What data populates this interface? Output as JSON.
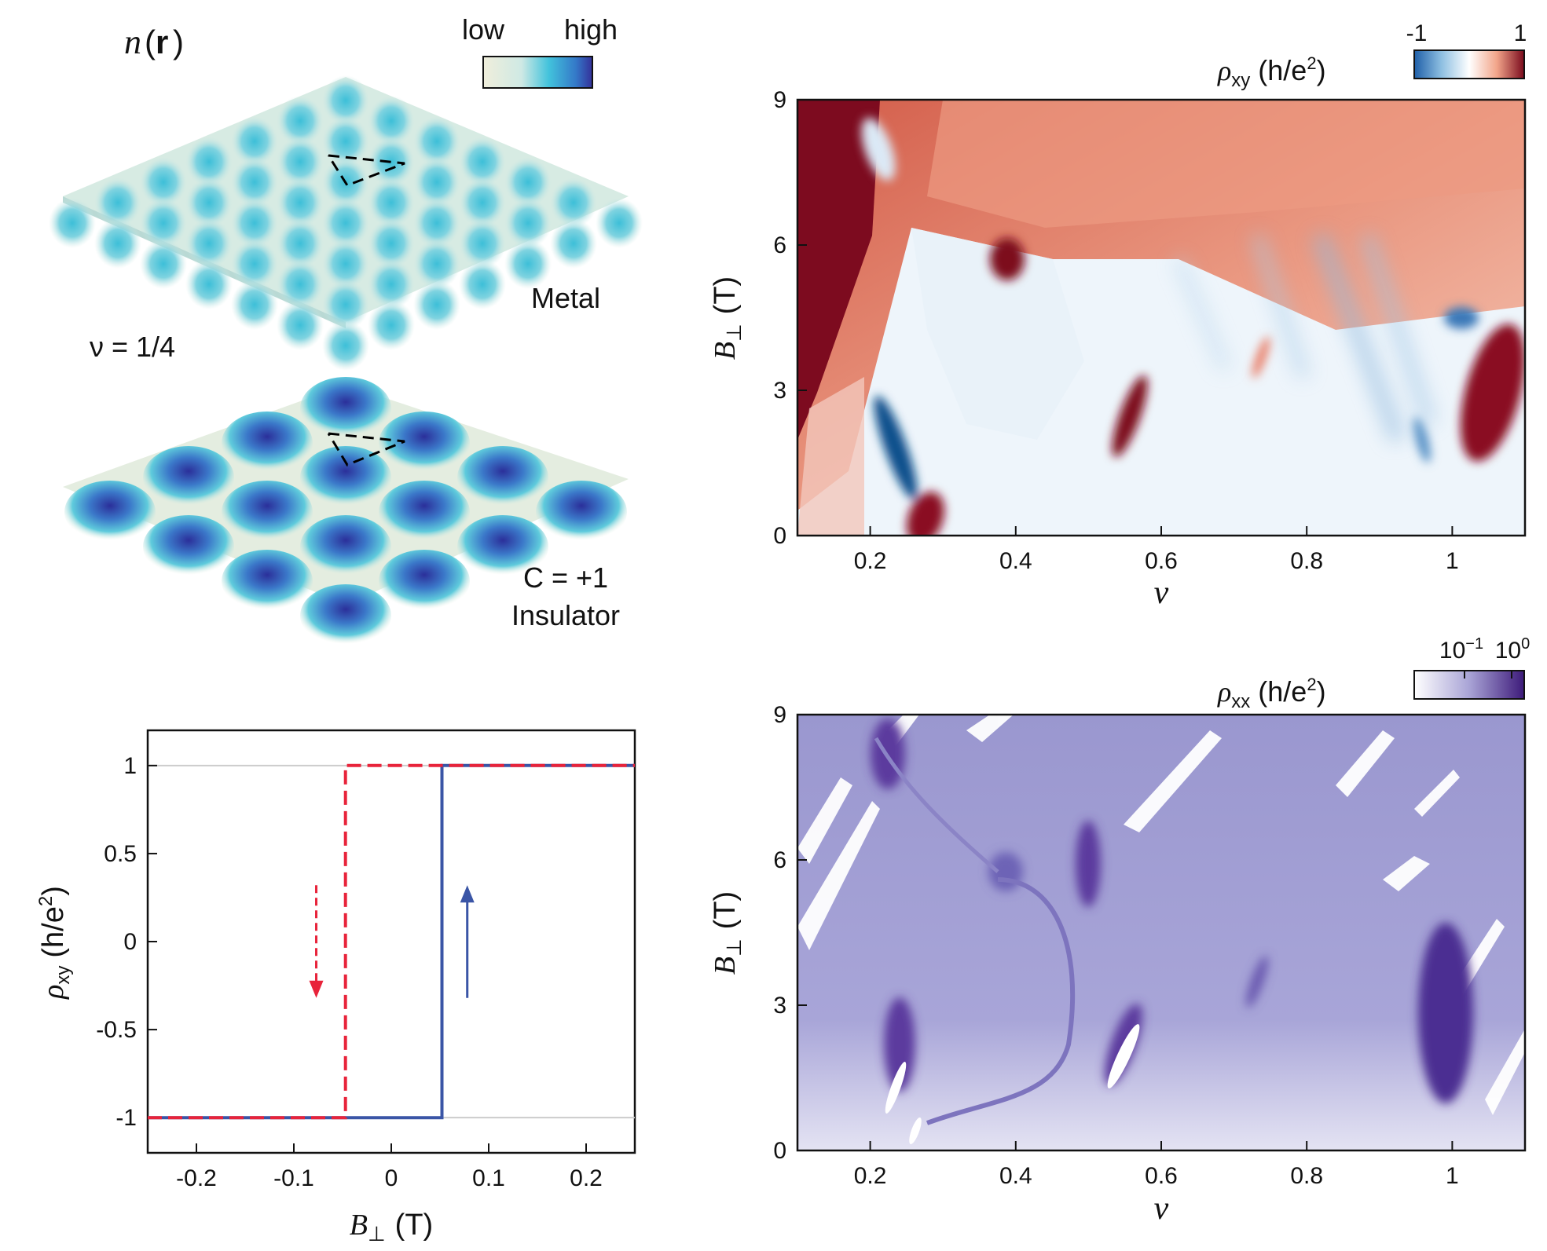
{
  "surface_panel": {
    "density_label": "n",
    "density_arg": "r",
    "colorbar": {
      "low": "low",
      "high": "high"
    },
    "metal_label": "Metal",
    "filling_label": "ν = 1/4",
    "insulator_chern": "C = +1",
    "insulator_label": "Insulator"
  },
  "chart_data": [
    {
      "id": "hysteresis",
      "type": "line",
      "xlabel_sym": "B",
      "xlabel_sub": "⊥",
      "xlabel_unit": "(T)",
      "ylabel_sym": "ρ",
      "ylabel_sub": "xy",
      "ylabel_unit": "(h/e",
      "ylabel_sup": "2",
      "ylabel_close": ")",
      "xlim": [
        -0.25,
        0.25
      ],
      "ylim": [
        -1.2,
        1.2
      ],
      "xticks": [
        -0.2,
        -0.1,
        0,
        0.1,
        0.2
      ],
      "xtick_labels": [
        "-0.2",
        "-0.1",
        "0",
        "0.1",
        "0.2"
      ],
      "yticks": [
        -1,
        -0.5,
        0,
        0.5,
        1
      ],
      "ytick_labels": [
        "-1",
        "-0.5",
        "0",
        "0.5",
        "1"
      ],
      "gridlines_y": [
        -1,
        1
      ],
      "series": [
        {
          "color": "#e8233a",
          "dash": true,
          "direction": "down",
          "x": [
            -0.25,
            -0.047,
            -0.047,
            0.25
          ],
          "y": [
            -1,
            -1,
            1,
            1
          ]
        },
        {
          "color": "#3a55a6",
          "dash": false,
          "direction": "up",
          "x": [
            -0.25,
            0.052,
            0.052,
            0.25
          ],
          "y": [
            -1,
            -1,
            1,
            1
          ]
        }
      ],
      "arrows": [
        {
          "color": "#e8233a",
          "x": -0.077,
          "y_from": 0.32,
          "y_to": -0.32,
          "dashed": true
        },
        {
          "color": "#3a55a6",
          "x": 0.078,
          "y_from": -0.32,
          "y_to": 0.32,
          "dashed": false
        }
      ]
    },
    {
      "id": "rho_xy_map",
      "type": "heatmap",
      "xlabel": "ν",
      "ylabel_sym": "B",
      "ylabel_sub": "⊥",
      "ylabel_unit": "(T)",
      "xlim": [
        0.1,
        1.1
      ],
      "ylim": [
        0,
        9
      ],
      "xticks": [
        0.2,
        0.4,
        0.6,
        0.8,
        1
      ],
      "xtick_labels": [
        "0.2",
        "0.4",
        "0.6",
        "0.8",
        "1"
      ],
      "yticks": [
        0,
        3,
        6,
        9
      ],
      "ytick_labels": [
        "0",
        "3",
        "6",
        "9"
      ],
      "colorbar_sym": "ρ",
      "colorbar_sub": "xy",
      "colorbar_unit": "(h/e",
      "colorbar_sup": "2",
      "colorbar_close": ")",
      "colorbar_min": "-1",
      "colorbar_max": "1",
      "colormap": [
        "#1f5fa8",
        "#ffffff",
        "#7a0a1c"
      ]
    },
    {
      "id": "rho_xx_map",
      "type": "heatmap",
      "xlabel": "ν",
      "ylabel_sym": "B",
      "ylabel_sub": "⊥",
      "ylabel_unit": "(T)",
      "xlim": [
        0.1,
        1.1
      ],
      "ylim": [
        0,
        9
      ],
      "xticks": [
        0.2,
        0.4,
        0.6,
        0.8,
        1
      ],
      "xtick_labels": [
        "0.2",
        "0.4",
        "0.6",
        "0.8",
        "1"
      ],
      "yticks": [
        0,
        3,
        6,
        9
      ],
      "ytick_labels": [
        "0",
        "3",
        "6",
        "9"
      ],
      "colorbar_sym": "ρ",
      "colorbar_sub": "xx",
      "colorbar_unit": "(h/e",
      "colorbar_sup": "2",
      "colorbar_close": ")",
      "colorbar_tick1_base": "10",
      "colorbar_tick1_exp": "−1",
      "colorbar_tick2_base": "10",
      "colorbar_tick2_exp": "0",
      "colormap": [
        "#ffffff",
        "#8a86c4",
        "#3d1a7a"
      ]
    }
  ]
}
